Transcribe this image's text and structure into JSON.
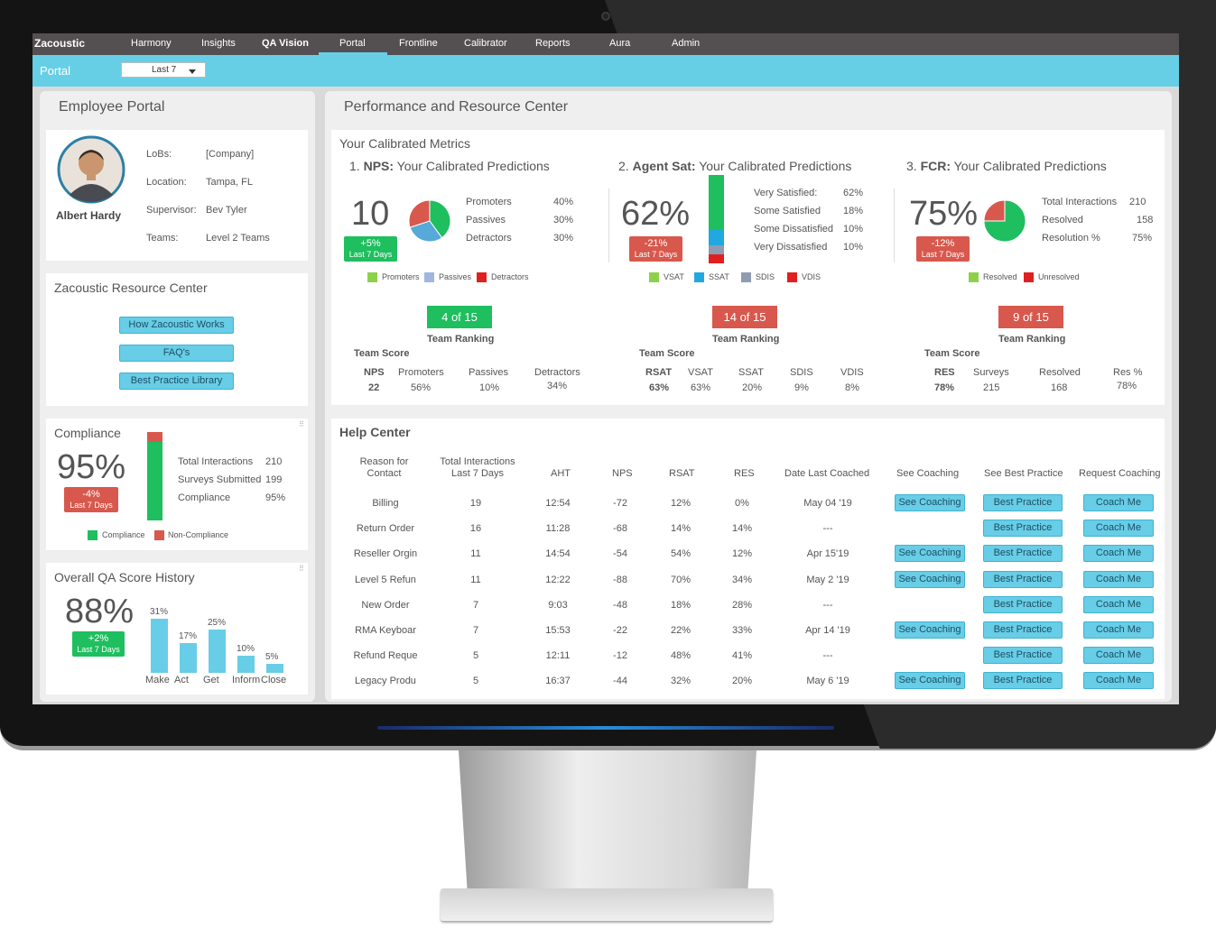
{
  "app": {
    "brand": "Zacoustic"
  },
  "nav": [
    "Harmony",
    "Insights",
    "QA Vision",
    "Portal",
    "Frontline",
    "Calibrator",
    "Reports",
    "Aura",
    "Admin"
  ],
  "portalbar": {
    "title": "Portal",
    "range": "Last 7"
  },
  "employee": {
    "title": "Employee Portal",
    "name": "Albert Hardy",
    "labels": [
      "LoBs:",
      "Location:",
      "Supervisor:",
      "Teams:"
    ],
    "values": [
      "[Company]",
      "Tampa, FL",
      "Bev Tyler",
      "Level 2 Teams"
    ]
  },
  "resource": {
    "title": "Zacoustic Resource Center",
    "buttons": [
      "How Zacoustic Works",
      "FAQ's",
      "Best Practice Library"
    ]
  },
  "compliance": {
    "title": "Compliance",
    "score": "95%",
    "delta": "-4%",
    "period": "Last 7 Days",
    "rows": [
      [
        "Total Interactions",
        "210"
      ],
      [
        "Surveys Submitted",
        "199"
      ],
      [
        "Compliance",
        "95%"
      ]
    ],
    "legend": [
      "Compliance",
      "Non-Compliance"
    ],
    "compliance_share": 95,
    "colors": {
      "good": "#1fbe5f",
      "bad": "#d8584d"
    }
  },
  "qa_history": {
    "title": "Overall QA Score History",
    "score": "88%",
    "delta": "+2%",
    "period": "Last 7 Days",
    "chart_data": {
      "type": "bar",
      "categories": [
        "Make",
        "Act",
        "Get",
        "Inform",
        "Close"
      ],
      "values": [
        31,
        17,
        25,
        10,
        5
      ],
      "labels": [
        "31%",
        "17%",
        "25%",
        "10%",
        "5%"
      ],
      "ylim": [
        0,
        31
      ]
    }
  },
  "perf": {
    "title": "Performance and Resource Center",
    "subtitle": "Your Calibrated Metrics"
  },
  "nps": {
    "num": "1.",
    "bold": "NPS:",
    "rest": "Your Calibrated Predictions",
    "score": "10",
    "delta": "+5%",
    "period": "Last 7 Days",
    "rows": [
      [
        "Promoters",
        "40%"
      ],
      [
        "Passives",
        "30%"
      ],
      [
        "Detractors",
        "30%"
      ]
    ],
    "legend": [
      "Promoters",
      "Passives",
      "Detractors"
    ],
    "chart_data": {
      "type": "pie",
      "labels": [
        "Promoters",
        "Passives",
        "Detractors"
      ],
      "values": [
        40,
        30,
        30
      ],
      "colors": [
        "#1fbe5f",
        "#56a9d9",
        "#d8584d"
      ]
    },
    "rank": "4 of 15",
    "rank_label": "Team Ranking",
    "team_score": "Team Score",
    "table": {
      "headers": [
        "NPS",
        "Promoters",
        "Passives",
        "Detractors"
      ],
      "values": [
        "22",
        "56%",
        "10%",
        "34%"
      ]
    }
  },
  "sat": {
    "num": "2.",
    "bold": "Agent Sat:",
    "rest": "Your Calibrated Predictions",
    "score": "62%",
    "delta": "-21%",
    "period": "Last 7 Days",
    "rows": [
      [
        "Very Satisfied:",
        "62%"
      ],
      [
        "Some Satisfied",
        "18%"
      ],
      [
        "Some Dissatisfied",
        "10%"
      ],
      [
        "Very Dissatisfied",
        "10%"
      ]
    ],
    "legend": [
      "VSAT",
      "SSAT",
      "SDIS",
      "VDIS"
    ],
    "chart_data": {
      "type": "bar",
      "stacked": true,
      "labels": [
        "VSAT",
        "SSAT",
        "SDIS",
        "VDIS"
      ],
      "values": [
        62,
        18,
        10,
        10
      ],
      "colors": [
        "#1fbe5f",
        "#22a8e0",
        "#8f9bb0",
        "#e02020"
      ]
    },
    "rank": "14 of 15",
    "rank_label": "Team Ranking",
    "team_score": "Team Score",
    "table": {
      "headers": [
        "RSAT",
        "VSAT",
        "SSAT",
        "SDIS",
        "VDIS"
      ],
      "values": [
        "63%",
        "63%",
        "20%",
        "9%",
        "8%"
      ]
    }
  },
  "fcr": {
    "num": "3.",
    "bold": "FCR:",
    "rest": "Your Calibrated Predictions",
    "score": "75%",
    "delta": "-12%",
    "period": "Last 7 Days",
    "rows": [
      [
        "Total Interactions",
        "210"
      ],
      [
        "Resolved",
        "158"
      ],
      [
        "Resolution %",
        "75%"
      ]
    ],
    "legend": [
      "Resolved",
      "Unresolved"
    ],
    "chart_data": {
      "type": "pie",
      "labels": [
        "Resolved",
        "Unresolved"
      ],
      "values": [
        75,
        25
      ],
      "colors": [
        "#1fbe5f",
        "#d8584d"
      ]
    },
    "rank": "9 of 15",
    "rank_label": "Team Ranking",
    "team_score": "Team Score",
    "table": {
      "headers": [
        "RES",
        "Surveys",
        "Resolved",
        "Res %"
      ],
      "values": [
        "78%",
        "215",
        "168",
        "78%"
      ]
    }
  },
  "help": {
    "title": "Help Center",
    "headers": [
      "Reason for Contact",
      "Total Interactions Last 7 Days",
      "AHT",
      "NPS",
      "RSAT",
      "RES",
      "Date Last Coached",
      "See Coaching",
      "See Best Practice",
      "Request Coaching"
    ],
    "rows": [
      {
        "reason": "Billing",
        "total": "19",
        "aht": "12:54",
        "nps": "-72",
        "rsat": "12%",
        "res": "0%",
        "date": "May 04 '19",
        "coaching": "See Coaching",
        "best": "Best Practice",
        "coach": "Coach Me"
      },
      {
        "reason": "Return Order",
        "total": "16",
        "aht": "11:28",
        "nps": "-68",
        "rsat": "14%",
        "res": "14%",
        "date": "---",
        "coaching": "",
        "best": "Best Practice",
        "coach": "Coach Me"
      },
      {
        "reason": "Reseller Orgin",
        "total": "11",
        "aht": "14:54",
        "nps": "-54",
        "rsat": "54%",
        "res": "12%",
        "date": "Apr 15'19",
        "coaching": "See Coaching",
        "best": "Best Practice",
        "coach": "Coach Me"
      },
      {
        "reason": "Level 5 Refun",
        "total": "11",
        "aht": "12:22",
        "nps": "-88",
        "rsat": "70%",
        "res": "34%",
        "date": "May 2 '19",
        "coaching": "See Coaching",
        "best": "Best Practice",
        "coach": "Coach Me"
      },
      {
        "reason": "New Order",
        "total": "7",
        "aht": "9:03",
        "nps": "-48",
        "rsat": "18%",
        "res": "28%",
        "date": "---",
        "coaching": "",
        "best": "Best Practice",
        "coach": "Coach Me"
      },
      {
        "reason": "RMA Keyboar",
        "total": "7",
        "aht": "15:53",
        "nps": "-22",
        "rsat": "22%",
        "res": "33%",
        "date": "Apr 14 '19",
        "coaching": "See Coaching",
        "best": "Best Practice",
        "coach": "Coach Me"
      },
      {
        "reason": "Refund Reque",
        "total": "5",
        "aht": "12:11",
        "nps": "-12",
        "rsat": "48%",
        "res": "41%",
        "date": "---",
        "coaching": "",
        "best": "Best Practice",
        "coach": "Coach Me"
      },
      {
        "reason": "Legacy Produ",
        "total": "5",
        "aht": "16:37",
        "nps": "-44",
        "rsat": "32%",
        "res": "20%",
        "date": "May 6 '19",
        "coaching": "See Coaching",
        "best": "Best Practice",
        "coach": "Coach Me"
      }
    ]
  }
}
